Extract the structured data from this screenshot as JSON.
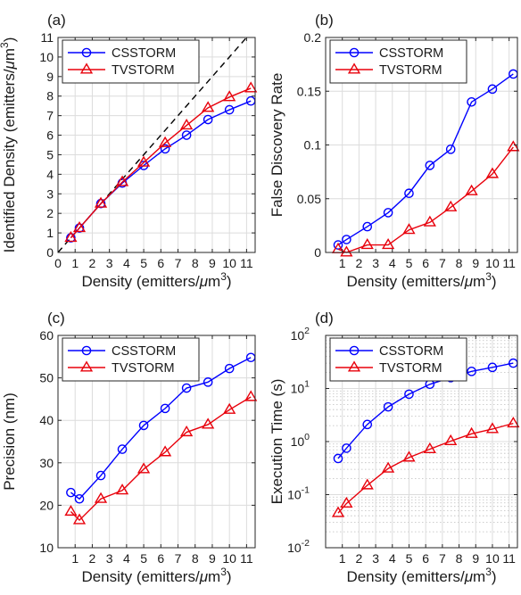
{
  "chart_data": [
    {
      "id": "a",
      "panel_label": "(a)",
      "type": "line",
      "xlabel": "Density (emitters/μm³)",
      "ylabel": "Identified Density (emitters/μm³)",
      "xlim": [
        0,
        11.5
      ],
      "ylim": [
        0,
        11
      ],
      "xscale": "linear",
      "yscale": "linear",
      "xticks": [
        0,
        1,
        2,
        3,
        4,
        5,
        6,
        7,
        8,
        9,
        10,
        11
      ],
      "xtick_labels": [
        "0",
        "1",
        "2",
        "3",
        "4",
        "5",
        "6",
        "7",
        "8",
        "9",
        "10",
        "11"
      ],
      "yticks": [
        0,
        1,
        2,
        3,
        4,
        5,
        6,
        7,
        8,
        9,
        10,
        11
      ],
      "ytick_labels": [
        "0",
        "1",
        "2",
        "3",
        "4",
        "5",
        "6",
        "7",
        "8",
        "9",
        "10",
        "11"
      ],
      "grid": true,
      "legend": "top-left",
      "reference_line": {
        "from": [
          0,
          0
        ],
        "to": [
          11,
          11
        ],
        "style": "dashed",
        "color": "#000000"
      },
      "x": [
        0.75,
        1.25,
        2.5,
        3.75,
        5.0,
        6.25,
        7.5,
        8.75,
        10.0,
        11.25
      ],
      "series": [
        {
          "name": "CSSTORM",
          "color": "#0000ff",
          "marker": "circle",
          "values": [
            0.75,
            1.25,
            2.5,
            3.55,
            4.45,
            5.3,
            6.0,
            6.8,
            7.3,
            7.75
          ]
        },
        {
          "name": "TVSTORM",
          "color": "#e8000b",
          "marker": "triangle",
          "values": [
            0.75,
            1.25,
            2.5,
            3.6,
            4.6,
            5.6,
            6.5,
            7.4,
            7.95,
            8.4
          ]
        }
      ]
    },
    {
      "id": "b",
      "panel_label": "(b)",
      "type": "line",
      "xlabel": "Density (emitters/μm³)",
      "ylabel": "False Discovery Rate",
      "xlim": [
        0,
        11.5
      ],
      "ylim": [
        0,
        0.2
      ],
      "xscale": "linear",
      "yscale": "linear",
      "xticks": [
        1,
        2,
        3,
        4,
        5,
        6,
        7,
        8,
        9,
        10,
        11
      ],
      "xtick_labels": [
        "1",
        "2",
        "3",
        "4",
        "5",
        "6",
        "7",
        "8",
        "9",
        "10",
        "11"
      ],
      "yticks": [
        0,
        0.05,
        0.1,
        0.15,
        0.2
      ],
      "ytick_labels": [
        "0",
        "0.05",
        "0.1",
        "0.15",
        "0.2"
      ],
      "grid": true,
      "legend": "top-left",
      "x": [
        0.75,
        1.25,
        2.5,
        3.75,
        5.0,
        6.25,
        7.5,
        8.75,
        10.0,
        11.25
      ],
      "series": [
        {
          "name": "CSSTORM",
          "color": "#0000ff",
          "marker": "circle",
          "values": [
            0.007,
            0.012,
            0.024,
            0.037,
            0.055,
            0.081,
            0.096,
            0.14,
            0.152,
            0.166
          ]
        },
        {
          "name": "TVSTORM",
          "color": "#e8000b",
          "marker": "triangle",
          "values": [
            0.003,
            0.0,
            0.007,
            0.007,
            0.021,
            0.028,
            0.042,
            0.057,
            0.073,
            0.098
          ]
        }
      ]
    },
    {
      "id": "c",
      "panel_label": "(c)",
      "type": "line",
      "xlabel": "Density (emitters/μm³)",
      "ylabel": "Precision (nm)",
      "xlim": [
        0,
        11.5
      ],
      "ylim": [
        10,
        60
      ],
      "xscale": "linear",
      "yscale": "linear",
      "xticks": [
        1,
        2,
        3,
        4,
        5,
        6,
        7,
        8,
        9,
        10,
        11
      ],
      "xtick_labels": [
        "1",
        "2",
        "3",
        "4",
        "5",
        "6",
        "7",
        "8",
        "9",
        "10",
        "11"
      ],
      "yticks": [
        10,
        20,
        30,
        40,
        50,
        60
      ],
      "ytick_labels": [
        "10",
        "20",
        "30",
        "40",
        "50",
        "60"
      ],
      "grid": true,
      "legend": "top-left",
      "x": [
        0.75,
        1.25,
        2.5,
        3.75,
        5.0,
        6.25,
        7.5,
        8.75,
        10.0,
        11.25
      ],
      "series": [
        {
          "name": "CSSTORM",
          "color": "#0000ff",
          "marker": "circle",
          "values": [
            23.0,
            21.5,
            27.0,
            33.2,
            38.8,
            42.8,
            47.6,
            49.0,
            52.2,
            54.8
          ]
        },
        {
          "name": "TVSTORM",
          "color": "#e8000b",
          "marker": "triangle",
          "values": [
            18.5,
            16.5,
            21.5,
            23.5,
            28.5,
            32.5,
            37.2,
            39.0,
            42.5,
            45.5
          ]
        }
      ]
    },
    {
      "id": "d",
      "panel_label": "(d)",
      "type": "line",
      "xlabel": "Density (emitters/μm³)",
      "ylabel": "Execution Time (s)",
      "xlim": [
        0,
        11.5
      ],
      "ylim": [
        0.01,
        100
      ],
      "xscale": "linear",
      "yscale": "log",
      "xticks": [
        1,
        2,
        3,
        4,
        5,
        6,
        7,
        8,
        9,
        10,
        11
      ],
      "xtick_labels": [
        "1",
        "2",
        "3",
        "4",
        "5",
        "6",
        "7",
        "8",
        "9",
        "10",
        "11"
      ],
      "yticks": [
        0.01,
        0.1,
        1,
        10,
        100
      ],
      "ytick_labels": [
        {
          "base": "10",
          "exp": "-2"
        },
        {
          "base": "10",
          "exp": "-1"
        },
        {
          "base": "10",
          "exp": "0"
        },
        {
          "base": "10",
          "exp": "1"
        },
        {
          "base": "10",
          "exp": "2"
        }
      ],
      "grid": true,
      "minor_grid": true,
      "legend": "top-left",
      "x": [
        0.75,
        1.25,
        2.5,
        3.75,
        5.0,
        6.25,
        7.5,
        8.75,
        10.0,
        11.25
      ],
      "series": [
        {
          "name": "CSSTORM",
          "color": "#0000ff",
          "marker": "circle",
          "values": [
            0.48,
            0.75,
            2.1,
            4.5,
            7.8,
            12.0,
            16.0,
            21.0,
            25.0,
            30.0
          ]
        },
        {
          "name": "TVSTORM",
          "color": "#e8000b",
          "marker": "triangle",
          "values": [
            0.045,
            0.068,
            0.15,
            0.31,
            0.5,
            0.72,
            1.02,
            1.4,
            1.72,
            2.2
          ]
        }
      ]
    }
  ]
}
